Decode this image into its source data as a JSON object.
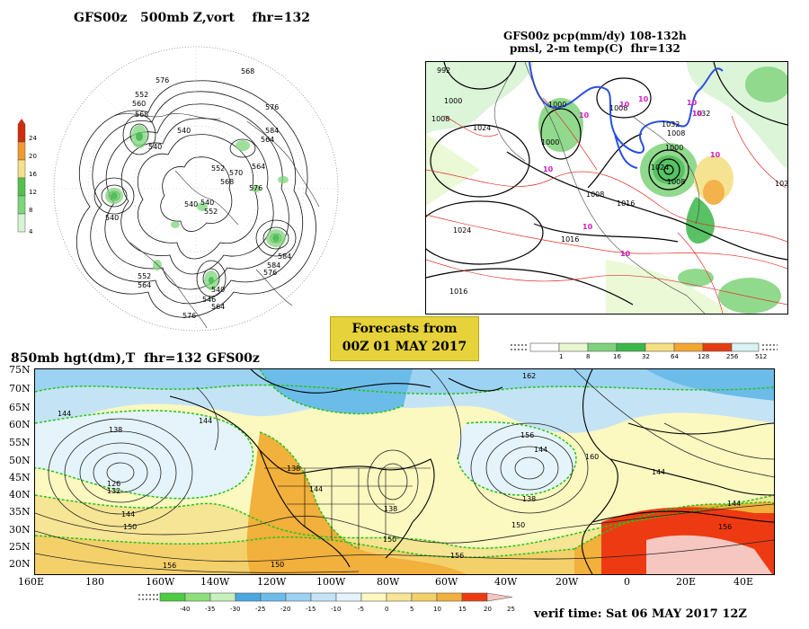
{
  "panel_500mb": {
    "title": "GFS00z   500mb Z,vort    fhr=132",
    "vort_legend": {
      "values": [
        "24",
        "20",
        "16",
        "12",
        "8",
        "4"
      ],
      "colors": [
        "#d22c08",
        "#f29a2c",
        "#f6e18a",
        "#52c04a",
        "#7dd67a",
        "#d6f4d2"
      ]
    },
    "contour_labels": [
      "568",
      "576",
      "576",
      "584",
      "552",
      "560",
      "568",
      "540",
      "540",
      "564",
      "552",
      "564",
      "540",
      "540",
      "568",
      "576",
      "570",
      "540",
      "552",
      "584",
      "576",
      "584",
      "552",
      "564",
      "540",
      "546",
      "576",
      "564"
    ]
  },
  "panel_precip": {
    "title_line1": "GFS00z pcp(mm/dy) 108-132h",
    "title_line2": "pmsl, 2-m temp(C)  fhr=132",
    "contour_labels": [
      "992",
      "1000",
      "1008",
      "1024",
      "1000",
      "1008",
      "1000",
      "1032",
      "1000",
      "1024",
      "1016",
      "1008",
      "1016",
      "1016",
      "1024",
      "1032",
      "1008",
      "1008",
      "102"
    ],
    "temp_labels": [
      "10",
      "10",
      "10",
      "10",
      "10",
      "10",
      "10",
      "10",
      "10"
    ],
    "legend_values": [
      "1",
      "8",
      "16",
      "32",
      "64",
      "128",
      "256",
      "512"
    ],
    "legend_colors": [
      "#e8f8d0",
      "#7ed37a",
      "#3cb84a",
      "#f5df80",
      "#f3a52d",
      "#e53d12",
      "#d9f3f3"
    ]
  },
  "forecast_box": {
    "line1": "Forecasts from",
    "line2": "00Z 01 MAY 2017"
  },
  "panel_850mb": {
    "title": "850mb hgt(dm),T  fhr=132 GFS00z",
    "lat_labels": [
      "75N",
      "70N",
      "65N",
      "60N",
      "55N",
      "50N",
      "45N",
      "40N",
      "35N",
      "30N",
      "25N",
      "20N"
    ],
    "lon_labels": [
      "160E",
      "180",
      "160W",
      "140W",
      "120W",
      "100W",
      "80W",
      "60W",
      "40W",
      "20W",
      "0",
      "20E",
      "40E"
    ],
    "contour_labels": [
      "144",
      "138",
      "132",
      "126",
      "144",
      "150",
      "156",
      "144",
      "138",
      "144",
      "138",
      "150",
      "156",
      "150",
      "162",
      "156",
      "144",
      "160",
      "138",
      "144",
      "144",
      "150",
      "156"
    ],
    "temp_legend": {
      "values": [
        "-40",
        "-35",
        "-30",
        "-25",
        "-20",
        "-15",
        "-10",
        "-5",
        "0",
        "5",
        "10",
        "15",
        "20",
        "25"
      ],
      "colors": [
        "#4ccc40",
        "#8ce07c",
        "#c6f0bc",
        "#4aa8e0",
        "#6cbcea",
        "#9cd2f2",
        "#c4e4f6",
        "#e4f4fa",
        "#fbf8c0",
        "#f6e594",
        "#f4d06a",
        "#f2b03c",
        "#ee3a12"
      ]
    }
  },
  "verif_time": "verif time: Sat 06 MAY 2017 12Z"
}
